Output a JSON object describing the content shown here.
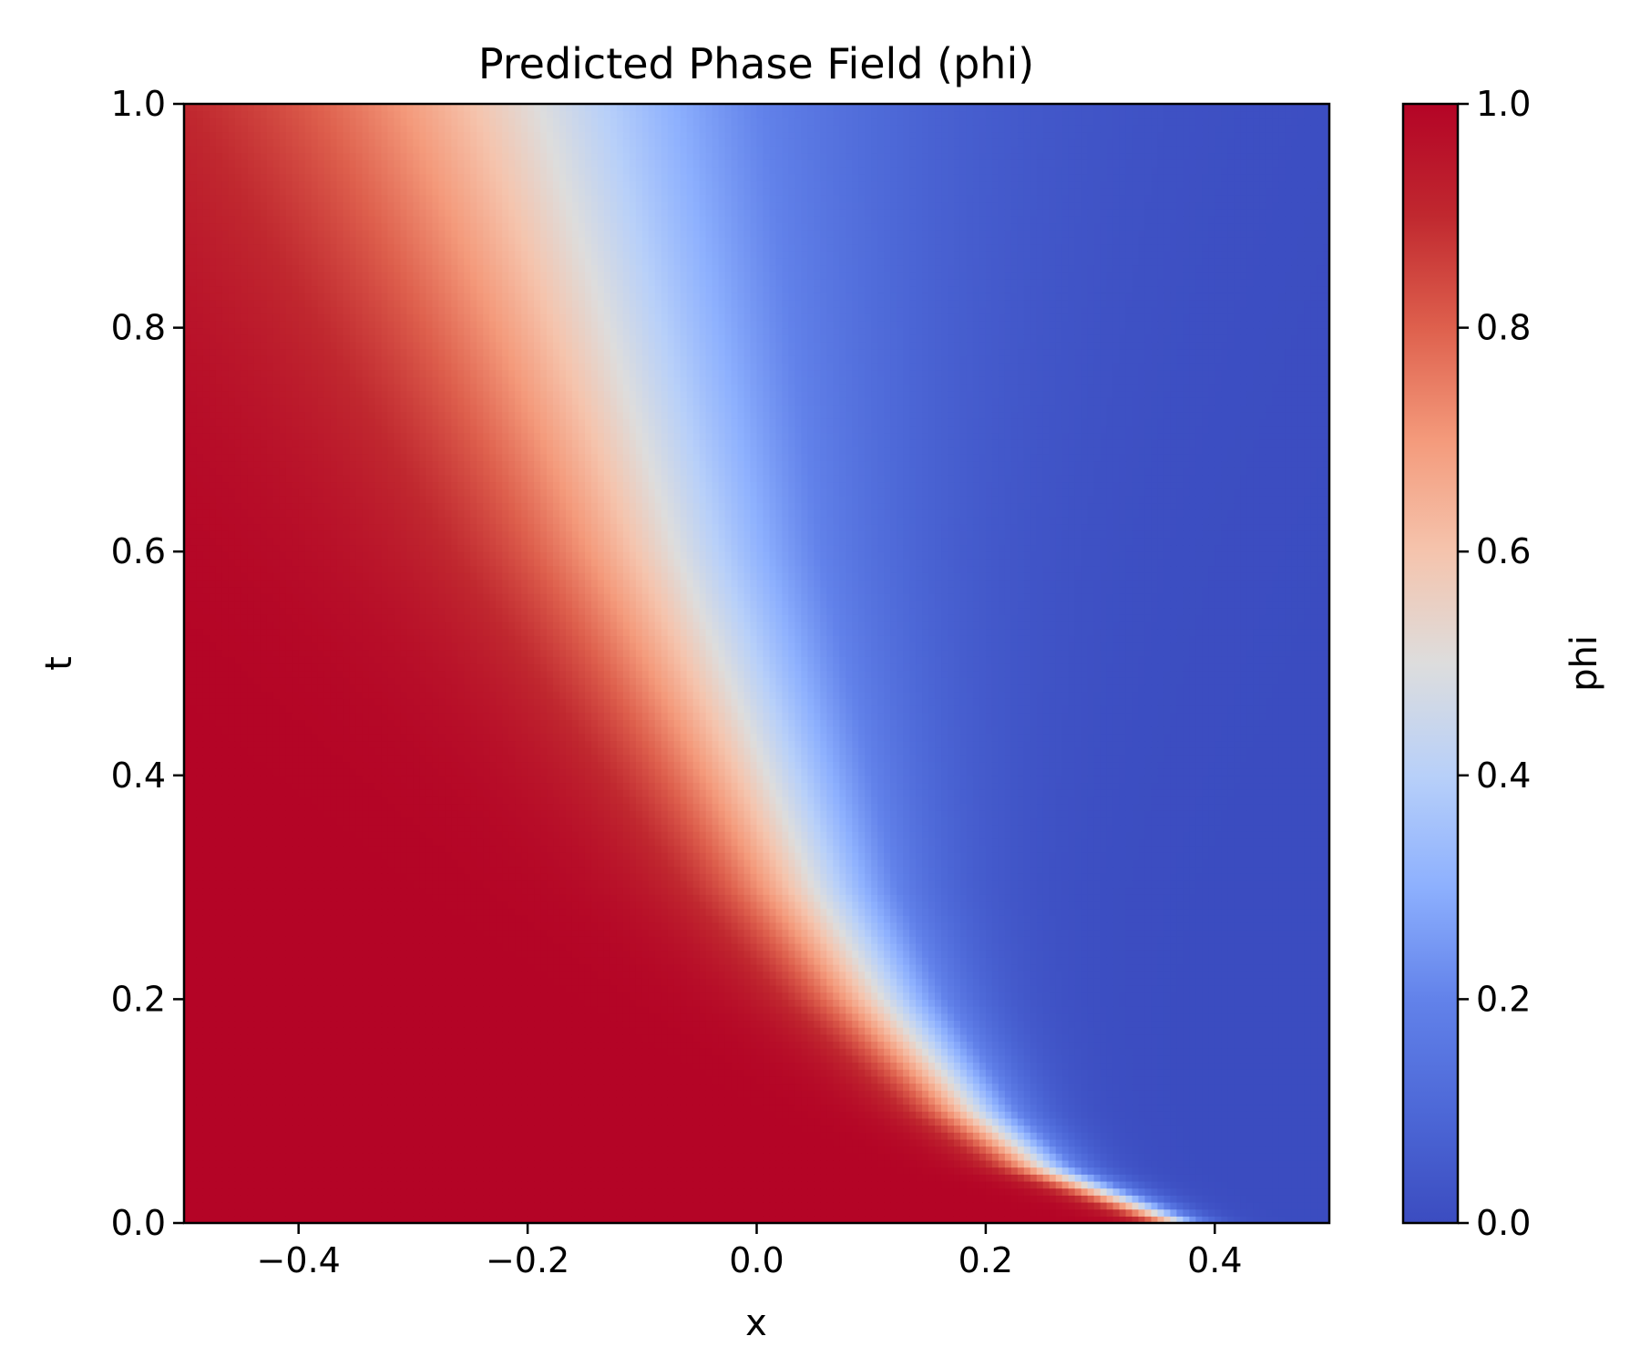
{
  "chart_data": {
    "type": "heatmap",
    "title": "Predicted Phase Field (phi)",
    "xlabel": "x",
    "ylabel": "t",
    "xlim": [
      -0.5,
      0.5
    ],
    "ylim": [
      0.0,
      1.0
    ],
    "x_ticks": [
      -0.4,
      -0.2,
      0.0,
      0.2,
      0.4
    ],
    "x_tick_labels": [
      "−0.4",
      "−0.2",
      "0.0",
      "0.2",
      "0.4"
    ],
    "y_ticks": [
      0.0,
      0.2,
      0.4,
      0.6,
      0.8,
      1.0
    ],
    "y_tick_labels": [
      "0.0",
      "0.2",
      "0.4",
      "0.6",
      "0.8",
      "1.0"
    ],
    "colorbar": {
      "label": "phi",
      "colormap": "coolwarm",
      "range": [
        0.0,
        1.0
      ],
      "ticks": [
        0.0,
        0.2,
        0.4,
        0.6,
        0.8,
        1.0
      ],
      "tick_labels": [
        "0.0",
        "0.2",
        "0.4",
        "0.6",
        "0.8",
        "1.0"
      ]
    },
    "grid": false,
    "interface_phi_0_5": {
      "t": [
        0.0,
        0.05,
        0.1,
        0.2,
        0.3,
        0.4,
        0.6,
        0.8,
        1.0
      ],
      "x": [
        0.37,
        0.25,
        0.19,
        0.11,
        0.05,
        0.01,
        -0.07,
        -0.13,
        -0.19
      ]
    },
    "profile_width_in_x": {
      "t": [
        0.0,
        1.0
      ],
      "width": [
        0.03,
        0.28
      ]
    },
    "field_description": "phi ≈ 1 at left (x=-0.5), decays smoothly to ≈ 0 at right (x=0.5); transition front moves left with increasing t"
  }
}
